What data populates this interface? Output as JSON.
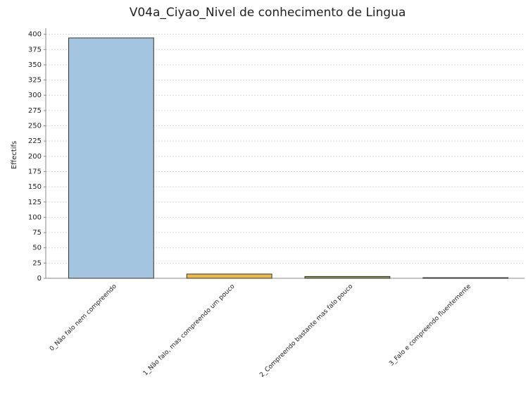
{
  "chart_data": {
    "type": "bar",
    "title": "V04a_Ciyao_Nivel de conhecimento de Lingua",
    "y_label": "Effectifs",
    "categories": [
      "0_Não falo nem compreendo",
      "1_Não falo, mas compreendo um pouco",
      "2_Compreendo bastante mas falo pouco",
      "3_Falo e compreendo fluentemente"
    ],
    "values": [
      394,
      7,
      3,
      1
    ],
    "colors": [
      "#a3c5df",
      "#ebb94a",
      "#8c9b4c",
      "#6e6a80"
    ],
    "ylim": [
      0,
      410
    ],
    "yticks": [
      0,
      25,
      50,
      75,
      100,
      125,
      150,
      175,
      200,
      225,
      250,
      275,
      300,
      325,
      350,
      375,
      400
    ],
    "grid": true
  }
}
